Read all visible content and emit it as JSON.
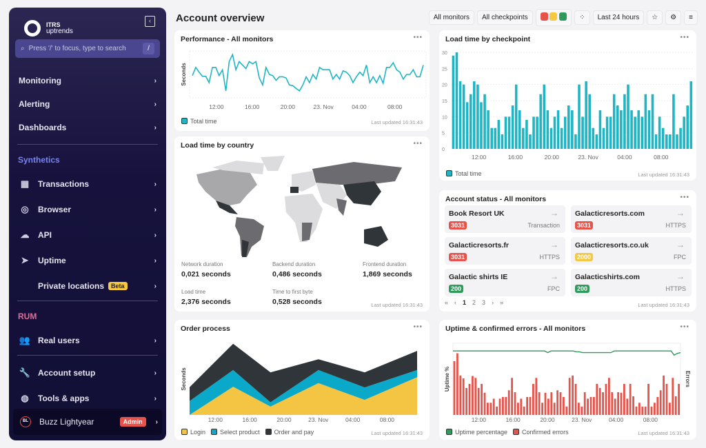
{
  "sidebar": {
    "logo_top": "ITRS",
    "logo_bottom": "uptrends",
    "search_placeholder": "Press '/' to focus, type to search",
    "search_shortcut": "/",
    "top_items": [
      {
        "label": "Monitoring"
      },
      {
        "label": "Alerting"
      },
      {
        "label": "Dashboards"
      }
    ],
    "synthetics_label": "Synthetics",
    "synthetics_items": [
      {
        "label": "Transactions",
        "icon": "film-icon"
      },
      {
        "label": "Browser",
        "icon": "compass-icon"
      },
      {
        "label": "API",
        "icon": "cloud-icon"
      },
      {
        "label": "Uptime",
        "icon": "navigation-icon"
      },
      {
        "label": "Private locations",
        "badge": "Beta"
      }
    ],
    "rum_label": "RUM",
    "rum_items": [
      {
        "label": "Real users",
        "icon": "users-icon"
      }
    ],
    "bottom_items": [
      {
        "label": "Account setup",
        "icon": "wrench-icon"
      },
      {
        "label": "Tools & apps",
        "icon": "tools-icon"
      }
    ],
    "user": {
      "initials": "BL",
      "name": "Buzz Lightyear",
      "role": "Admin"
    },
    "colors": {
      "synthetics": "#7b83f0",
      "rum": "#e26b9a"
    }
  },
  "header": {
    "title": "Account overview",
    "monitors": "All monitors",
    "checkpoints": "All checkpoints",
    "status_colors": [
      "#e5534b",
      "#f4c842",
      "#2e9a5c"
    ],
    "period": "Last 24 hours"
  },
  "time_ticks": [
    "12:00",
    "16:00",
    "20:00",
    "23. Nov",
    "04:00",
    "08:00"
  ],
  "last_updated": "Last updated 16:31:43",
  "performance": {
    "title": "Performance - All monitors",
    "ylabel": "Seconds",
    "legend": "Total time",
    "color": "#1fb5c5",
    "values": [
      9.5,
      13,
      11,
      9.2,
      9.2,
      6.5,
      13,
      13,
      9.5,
      12,
      3,
      15.5,
      18.5,
      12,
      15.5,
      14,
      12.5,
      15.5,
      14.5,
      15.5,
      8.5,
      5.5,
      13,
      10,
      9.5,
      7.5,
      9,
      9,
      8.5,
      5.5,
      5.2,
      4,
      3,
      5.5,
      9,
      6.5,
      10,
      8,
      13,
      12,
      12,
      12,
      8,
      10,
      8,
      11.5,
      11,
      9.5,
      6.5,
      9,
      11,
      9.5,
      14,
      6.5,
      9,
      6.5,
      9.5,
      6.2,
      13,
      13,
      15,
      12,
      11,
      8,
      10,
      10,
      12,
      9,
      9,
      14
    ]
  },
  "checkpoint": {
    "title": "Load time by checkpoint",
    "legend": "Total time",
    "color": "#1fb5c5",
    "yticks": [
      0,
      5,
      10,
      15,
      20,
      25,
      30
    ],
    "ylim": [
      0,
      30
    ],
    "values": [
      29,
      30,
      21,
      20,
      14.5,
      17,
      21,
      20,
      14.5,
      17,
      12,
      6.5,
      6.5,
      9,
      4.5,
      10,
      10,
      13.5,
      20,
      12,
      6.5,
      9,
      4.5,
      10,
      10,
      17,
      20,
      12,
      6.5,
      10,
      12,
      6.5,
      10,
      13.5,
      12,
      4.5,
      20,
      10,
      21,
      17,
      6.5,
      4.5,
      12,
      6.5,
      10,
      10,
      17,
      13.5,
      12,
      17,
      20,
      12,
      10,
      12,
      10,
      17,
      12,
      17,
      4.5,
      10,
      6.5,
      4.5,
      4.5,
      17,
      4.5,
      6.5,
      10,
      13.5,
      21
    ]
  },
  "country": {
    "title": "Load time by country",
    "stats": [
      {
        "label": "Network duration",
        "value": "0,021 seconds"
      },
      {
        "label": "Backend duration",
        "value": "0,486 seconds"
      },
      {
        "label": "Frontend duration",
        "value": "1,869 seconds"
      },
      {
        "label": "Load time",
        "value": "2,376 seconds"
      },
      {
        "label": "Time to first byte",
        "value": "0,528 seconds"
      }
    ],
    "shades": [
      "#dcdcde",
      "#a8a8ab",
      "#6b6b70",
      "#2f3538"
    ]
  },
  "status": {
    "title": "Account status - All monitors",
    "monitors": [
      {
        "name": "Book Resort UK",
        "code": "3031",
        "type": "Transaction",
        "color": "#e5534b"
      },
      {
        "name": "Galacticresorts.com",
        "code": "3031",
        "type": "HTTPS",
        "color": "#e5534b"
      },
      {
        "name": "Galacticresorts.fr",
        "code": "3031",
        "type": "HTTPS",
        "color": "#e5534b"
      },
      {
        "name": "Galacticresorts.co.uk",
        "code": "2000",
        "type": "FPC",
        "color": "#f4c842"
      },
      {
        "name": "Galactic shirts IE",
        "code": "200",
        "type": "FPC",
        "color": "#2e9a5c"
      },
      {
        "name": "Galacticshirts.com",
        "code": "200",
        "type": "HTTPS",
        "color": "#2e9a5c"
      }
    ],
    "pages": [
      "1",
      "2",
      "3"
    ],
    "current_page": "1"
  },
  "order": {
    "title": "Order process",
    "ylabel": "Seconds",
    "x_hours": [
      9.3,
      14.2,
      18.4,
      23.8,
      29,
      34.9
    ],
    "series": [
      {
        "name": "Login",
        "color": "#f4c542",
        "values": [
          0,
          11.8,
          3.5,
          13.3,
          6.3,
          15.8
        ]
      },
      {
        "name": "Select product",
        "color": "#0aa9c9",
        "values": [
          5.8,
          7,
          1.8,
          5.5,
          5.2,
          3
        ]
      },
      {
        "name": "Order and pay",
        "color": "#2f3538",
        "values": [
          5.8,
          11,
          12.5,
          4.5,
          6.3,
          8
        ]
      }
    ]
  },
  "uptime": {
    "title": "Uptime & confirmed errors - All monitors",
    "ylabel_left": "Uptime %",
    "ylabel_right": "Errors",
    "series": [
      {
        "name": "Uptime percentage",
        "color": "#2e9a5c"
      },
      {
        "name": "Confirmed errors",
        "color": "#e5534b"
      }
    ],
    "uptime_values": [
      99.9,
      99.9,
      99.9,
      99.9,
      99.9,
      99.9,
      99.9,
      99.9,
      99.9,
      99.9,
      99.9,
      99.9,
      99.9,
      99.9,
      99.9,
      99.9,
      99.9,
      99.9,
      99.9,
      99.9,
      99.9,
      99.9,
      99.9,
      99.9,
      99.9,
      99.9,
      99.9,
      99.9,
      99.9,
      99.9,
      99.7,
      99.9,
      99.9,
      99.9,
      99.9,
      99.9,
      99.9,
      99.9,
      99.9,
      99.8,
      99.8,
      99.7,
      99.7,
      99.7,
      99.7,
      99.7,
      99.7,
      99.7,
      99.7,
      99.7,
      99.7,
      99.9,
      99.9,
      99.9,
      99.9,
      99.9,
      99.9,
      99.9,
      99.9,
      99.9,
      99.9,
      99.9,
      99.9,
      99.9,
      99.9,
      99.9,
      99.9,
      99.9,
      99.9,
      99.9,
      99.4,
      99.6,
      99.7
    ],
    "errors": [
      22.5,
      25.8,
      16.5,
      15.3,
      11.3,
      13,
      16.3,
      15.5,
      11.3,
      13,
      9.3,
      5.1,
      5.1,
      6.8,
      3.5,
      6.8,
      7.5,
      7.5,
      10.3,
      15.5,
      9.5,
      5.1,
      6.8,
      3.5,
      7.5,
      7.5,
      13,
      15.5,
      9.5,
      5.1,
      9.3,
      6.8,
      9.5,
      5.1,
      10.3,
      9.5,
      7.5,
      3.5,
      15.5,
      16.5,
      13,
      5.1,
      3.5,
      9.5,
      6.8,
      7.5,
      7.5,
      13,
      11.3,
      9.5,
      13,
      15.5,
      9.5,
      6.8,
      9.5,
      9.3,
      13,
      6.8,
      13,
      7.8,
      3.5,
      5.1,
      3.5,
      3.5,
      13,
      3.5,
      5.1,
      7.5,
      10.3,
      16.5,
      13,
      5.1,
      15.5,
      7.8,
      13
    ]
  }
}
